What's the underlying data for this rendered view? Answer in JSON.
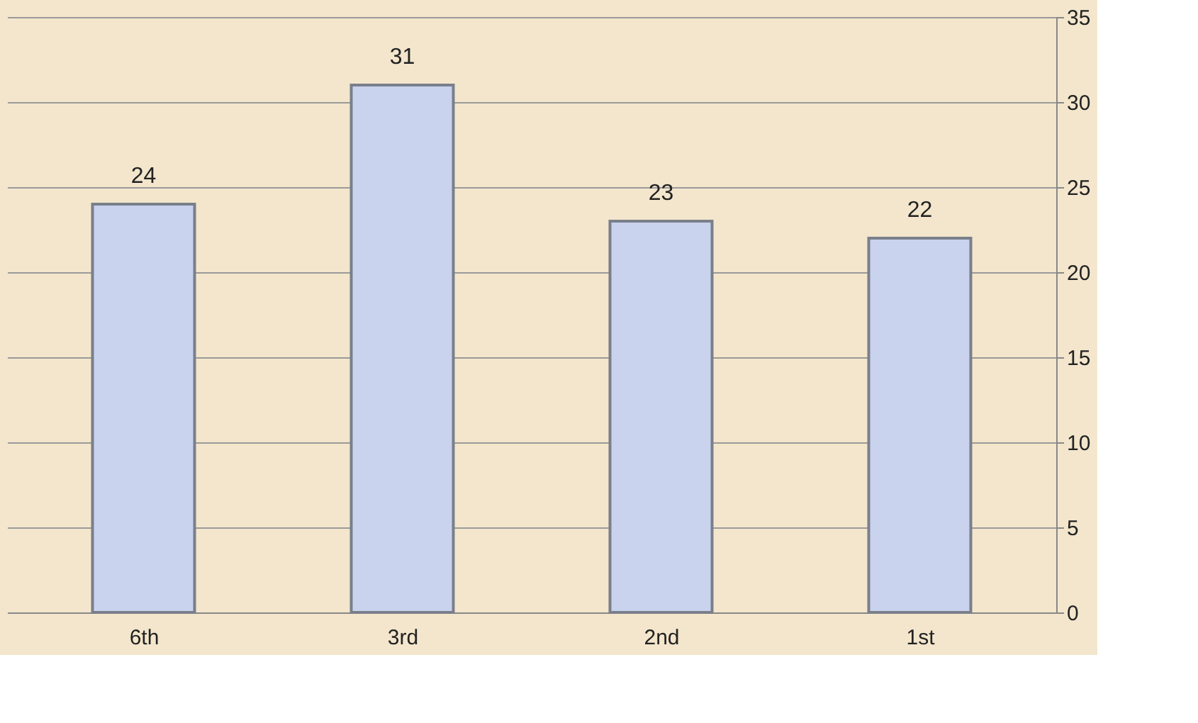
{
  "chart_data": {
    "type": "bar",
    "categories": [
      "6th",
      "3rd",
      "2nd",
      "1st"
    ],
    "values": [
      24,
      31,
      23,
      22
    ],
    "color": "#c9d3ee",
    "ylim": [
      0,
      35
    ],
    "yticks": [
      0,
      5,
      10,
      15,
      20,
      25,
      30,
      35
    ],
    "grid": "y",
    "data_labels": true
  }
}
